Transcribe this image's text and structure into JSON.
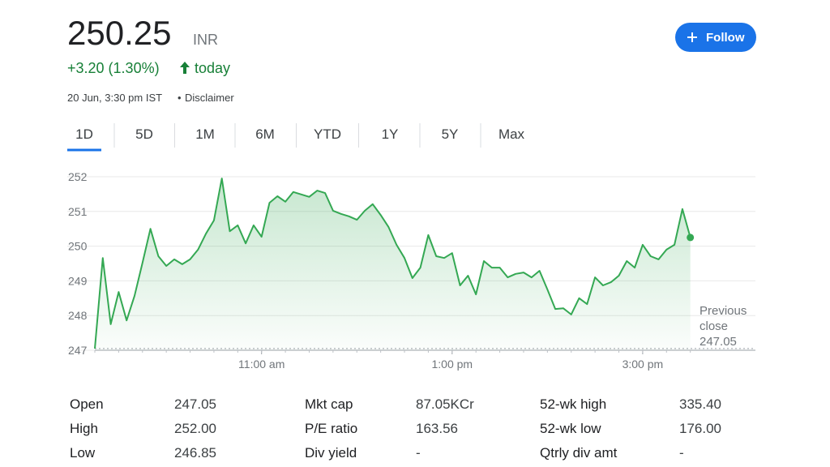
{
  "header": {
    "price": "250.25",
    "currency": "INR",
    "change": "+3.20 (1.30%)",
    "period": "today",
    "timestamp": "20 Jun, 3:30 pm IST",
    "disclaimer": "Disclaimer",
    "follow": "Follow"
  },
  "tabs": [
    "1D",
    "5D",
    "1M",
    "6M",
    "YTD",
    "1Y",
    "5Y",
    "Max"
  ],
  "chart_data": {
    "type": "line",
    "color": "#34a853",
    "grid": true,
    "x": [
      555,
      560,
      565,
      570,
      575,
      580,
      585,
      590,
      595,
      600,
      605,
      610,
      615,
      620,
      625,
      630,
      635,
      640,
      645,
      650,
      655,
      660,
      665,
      670,
      675,
      680,
      685,
      690,
      695,
      700,
      705,
      710,
      715,
      720,
      725,
      730,
      735,
      740,
      745,
      750,
      755,
      760,
      765,
      770,
      775,
      780,
      785,
      790,
      795,
      800,
      805,
      810,
      815,
      820,
      825,
      830,
      835,
      840,
      845,
      850,
      855,
      860,
      865,
      870,
      875,
      880,
      885,
      890,
      895,
      900,
      905,
      910,
      915,
      920,
      925,
      930
    ],
    "values": [
      247.05,
      249.66,
      247.75,
      248.68,
      247.86,
      248.57,
      249.52,
      250.5,
      249.71,
      249.43,
      249.62,
      249.48,
      249.62,
      249.9,
      250.36,
      250.74,
      251.95,
      250.43,
      250.6,
      250.08,
      250.6,
      250.27,
      251.25,
      251.44,
      251.28,
      251.56,
      251.49,
      251.42,
      251.6,
      251.53,
      251.02,
      250.93,
      250.86,
      250.76,
      251.02,
      251.21,
      250.9,
      250.55,
      250.04,
      249.66,
      249.08,
      249.38,
      250.32,
      249.71,
      249.66,
      249.8,
      248.87,
      249.15,
      248.61,
      249.57,
      249.38,
      249.38,
      249.1,
      249.2,
      249.24,
      249.1,
      249.29,
      248.75,
      248.19,
      248.21,
      248.03,
      248.5,
      248.33,
      249.1,
      248.87,
      248.96,
      249.15,
      249.57,
      249.38,
      250.04,
      249.71,
      249.62,
      249.9,
      250.04,
      251.07,
      250.25
    ],
    "xlim": [
      555,
      971
    ],
    "xticks": [
      {
        "value": 660,
        "label": "11:00 am"
      },
      {
        "value": 780,
        "label": "1:00 pm"
      },
      {
        "value": 900,
        "label": "3:00 pm"
      }
    ],
    "ylim": [
      247,
      252
    ],
    "yticks": [
      247,
      248,
      249,
      250,
      251,
      252
    ],
    "previous_close": {
      "label": "Previous close",
      "value": 247.05
    }
  },
  "stats": [
    [
      {
        "label": "Open",
        "value": "247.05"
      },
      {
        "label": "Mkt cap",
        "value": "87.05KCr"
      },
      {
        "label": "52-wk high",
        "value": "335.40"
      }
    ],
    [
      {
        "label": "High",
        "value": "252.00"
      },
      {
        "label": "P/E ratio",
        "value": "163.56"
      },
      {
        "label": "52-wk low",
        "value": "176.00"
      }
    ],
    [
      {
        "label": "Low",
        "value": "246.85"
      },
      {
        "label": "Div yield",
        "value": "-"
      },
      {
        "label": "Qtrly div amt",
        "value": "-"
      }
    ]
  ]
}
